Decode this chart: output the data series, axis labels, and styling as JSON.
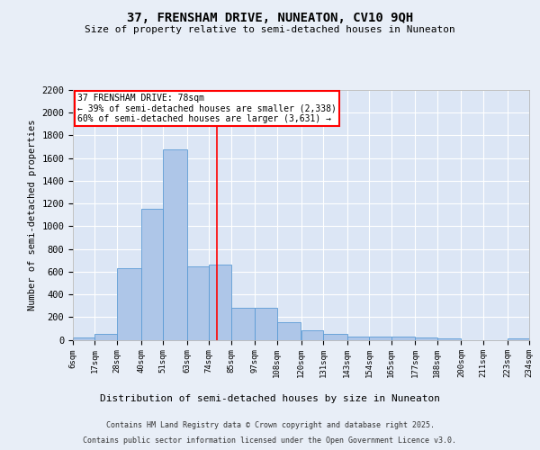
{
  "title1": "37, FRENSHAM DRIVE, NUNEATON, CV10 9QH",
  "title2": "Size of property relative to semi-detached houses in Nuneaton",
  "xlabel": "Distribution of semi-detached houses by size in Nuneaton",
  "ylabel": "Number of semi-detached properties",
  "bar_color": "#aec6e8",
  "bar_edge_color": "#5b9bd5",
  "background_color": "#e8eef7",
  "plot_bg_color": "#dce6f5",
  "grid_color": "#ffffff",
  "annotation_title": "37 FRENSHAM DRIVE: 78sqm",
  "annotation_line1": "← 39% of semi-detached houses are smaller (2,338)",
  "annotation_line2": "60% of semi-detached houses are larger (3,631) →",
  "property_line_x": 78,
  "footer1": "Contains HM Land Registry data © Crown copyright and database right 2025.",
  "footer2": "Contains public sector information licensed under the Open Government Licence v3.0.",
  "bins": [
    6,
    17,
    28,
    40,
    51,
    63,
    74,
    85,
    97,
    108,
    120,
    131,
    143,
    154,
    165,
    177,
    188,
    200,
    211,
    223,
    234
  ],
  "bin_labels": [
    "6sqm",
    "17sqm",
    "28sqm",
    "40sqm",
    "51sqm",
    "63sqm",
    "74sqm",
    "85sqm",
    "97sqm",
    "108sqm",
    "120sqm",
    "131sqm",
    "143sqm",
    "154sqm",
    "165sqm",
    "177sqm",
    "188sqm",
    "200sqm",
    "211sqm",
    "223sqm",
    "234sqm"
  ],
  "counts": [
    20,
    55,
    630,
    1150,
    1680,
    650,
    660,
    280,
    280,
    155,
    80,
    55,
    30,
    30,
    25,
    20,
    8,
    0,
    0,
    8,
    0
  ],
  "ylim": [
    0,
    2200
  ],
  "yticks": [
    0,
    200,
    400,
    600,
    800,
    1000,
    1200,
    1400,
    1600,
    1800,
    2000,
    2200
  ]
}
